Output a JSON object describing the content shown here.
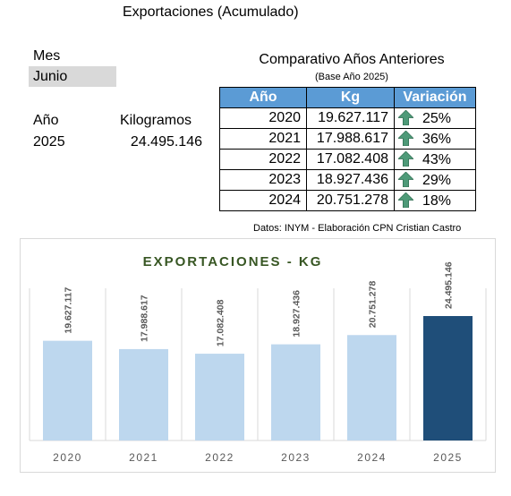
{
  "header": {
    "title": "Exportaciones (Acumulado)",
    "mes_label": "Mes",
    "mes_value": "Junio",
    "anio_label": "Año",
    "kg_label": "Kilogramos",
    "anio_value": "2025",
    "kg_value": "24.495.146"
  },
  "comparativo": {
    "title": "Comparativo Años Anteriores",
    "subtitle": "(Base Año 2025)",
    "columns": [
      "Año",
      "Kg",
      "Variación"
    ],
    "rows": [
      {
        "year": "2020",
        "kg": "19.627.117",
        "var": "25%"
      },
      {
        "year": "2021",
        "kg": "17.988.617",
        "var": "36%"
      },
      {
        "year": "2022",
        "kg": "17.082.408",
        "var": "43%"
      },
      {
        "year": "2023",
        "kg": "18.927.436",
        "var": "29%"
      },
      {
        "year": "2024",
        "kg": "20.751.278",
        "var": "18%"
      }
    ],
    "arrow_icon": "up-arrow-icon",
    "arrow_color": "#4e9a78"
  },
  "source": "Datos: INYM - Elaboración CPN Cristian Castro",
  "chart_data": {
    "type": "bar",
    "title": "EXPORTACIONES - KG",
    "categories": [
      "2020",
      "2021",
      "2022",
      "2023",
      "2024",
      "2025"
    ],
    "values": [
      19627117,
      17988617,
      17082408,
      18927436,
      20751278,
      24495146
    ],
    "value_labels": [
      "19.627.117",
      "17.988.617",
      "17.082.408",
      "18.927.436",
      "20.751.278",
      "24.495.146"
    ],
    "xlabel": "",
    "ylabel": "",
    "ylim": [
      0,
      24495146
    ],
    "grid": "vertical",
    "colors": {
      "past": "#bdd7ee",
      "current": "#1f4e79",
      "title": "#375623",
      "labels": "#595959"
    }
  }
}
